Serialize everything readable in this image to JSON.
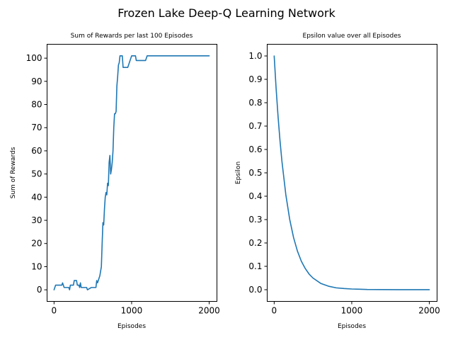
{
  "figure": {
    "title": "Frozen Lake Deep-Q Learning Network"
  },
  "chart_data": [
    {
      "type": "line",
      "title": "Sum of Rewards per last 100 Episodes",
      "xlabel": "Episodes",
      "ylabel": "Sum of Rewards",
      "xlim": [
        -90,
        2100
      ],
      "ylim": [
        -5,
        106
      ],
      "xticks": [
        0,
        1000,
        2000
      ],
      "yticks": [
        0,
        10,
        20,
        30,
        40,
        50,
        60,
        70,
        80,
        90,
        100
      ],
      "grid": false,
      "series": [
        {
          "color": "#1f77b4",
          "x": [
            0,
            10,
            20,
            100,
            110,
            120,
            130,
            190,
            200,
            210,
            250,
            260,
            290,
            300,
            320,
            330,
            340,
            350,
            360,
            380,
            390,
            400,
            420,
            430,
            480,
            490,
            500,
            510,
            540,
            550,
            560,
            570,
            580,
            590,
            600,
            610,
            620,
            630,
            640,
            650,
            660,
            670,
            680,
            690,
            700,
            710,
            720,
            730,
            740,
            750,
            760,
            770,
            780,
            790,
            800,
            810,
            820,
            830,
            840,
            850,
            860,
            870,
            880,
            890,
            900,
            910,
            920,
            940,
            950,
            1000,
            1050,
            1060,
            1100,
            1110,
            1180,
            1200,
            1220,
            1300,
            1500,
            1800,
            2000
          ],
          "y": [
            0,
            1,
            2,
            2,
            3,
            2,
            1,
            1,
            0,
            2,
            2,
            4,
            4,
            2,
            2,
            1,
            3,
            1,
            1,
            1,
            1,
            1,
            1,
            0,
            1,
            1,
            1,
            1,
            1,
            4,
            3,
            4,
            5,
            6,
            8,
            10,
            20,
            29,
            28,
            35,
            40,
            42,
            41,
            46,
            45,
            55,
            58,
            50,
            52,
            55,
            60,
            70,
            76,
            76,
            77,
            88,
            92,
            97,
            98,
            101,
            101,
            101,
            101,
            96,
            96,
            96,
            96,
            96,
            96,
            101,
            101,
            99,
            99,
            99,
            99,
            101,
            101,
            101,
            101,
            101,
            101
          ]
        }
      ]
    },
    {
      "type": "line",
      "title": "Epsilon value over all Episodes",
      "xlabel": "Episodes",
      "ylabel": "Epsilon",
      "xlim": [
        -90,
        2100
      ],
      "ylim": [
        -0.05,
        1.05
      ],
      "xticks": [
        0,
        1000,
        2000
      ],
      "yticks": [
        0.0,
        0.1,
        0.2,
        0.3,
        0.4,
        0.5,
        0.6,
        0.7,
        0.8,
        0.9,
        1.0
      ],
      "grid": false,
      "series": [
        {
          "color": "#1f77b4",
          "x": [
            0,
            25,
            50,
            75,
            100,
            150,
            200,
            250,
            300,
            350,
            400,
            450,
            500,
            600,
            700,
            800,
            900,
            1000,
            1100,
            1200,
            1400,
            1600,
            1800,
            2000
          ],
          "y": [
            1.0,
            0.861,
            0.741,
            0.638,
            0.549,
            0.407,
            0.301,
            0.223,
            0.165,
            0.122,
            0.091,
            0.067,
            0.05,
            0.027,
            0.015,
            0.008,
            0.005,
            0.003,
            0.002,
            0.001,
            0.0005,
            0.0003,
            0.0002,
            0.0001
          ]
        }
      ]
    }
  ]
}
